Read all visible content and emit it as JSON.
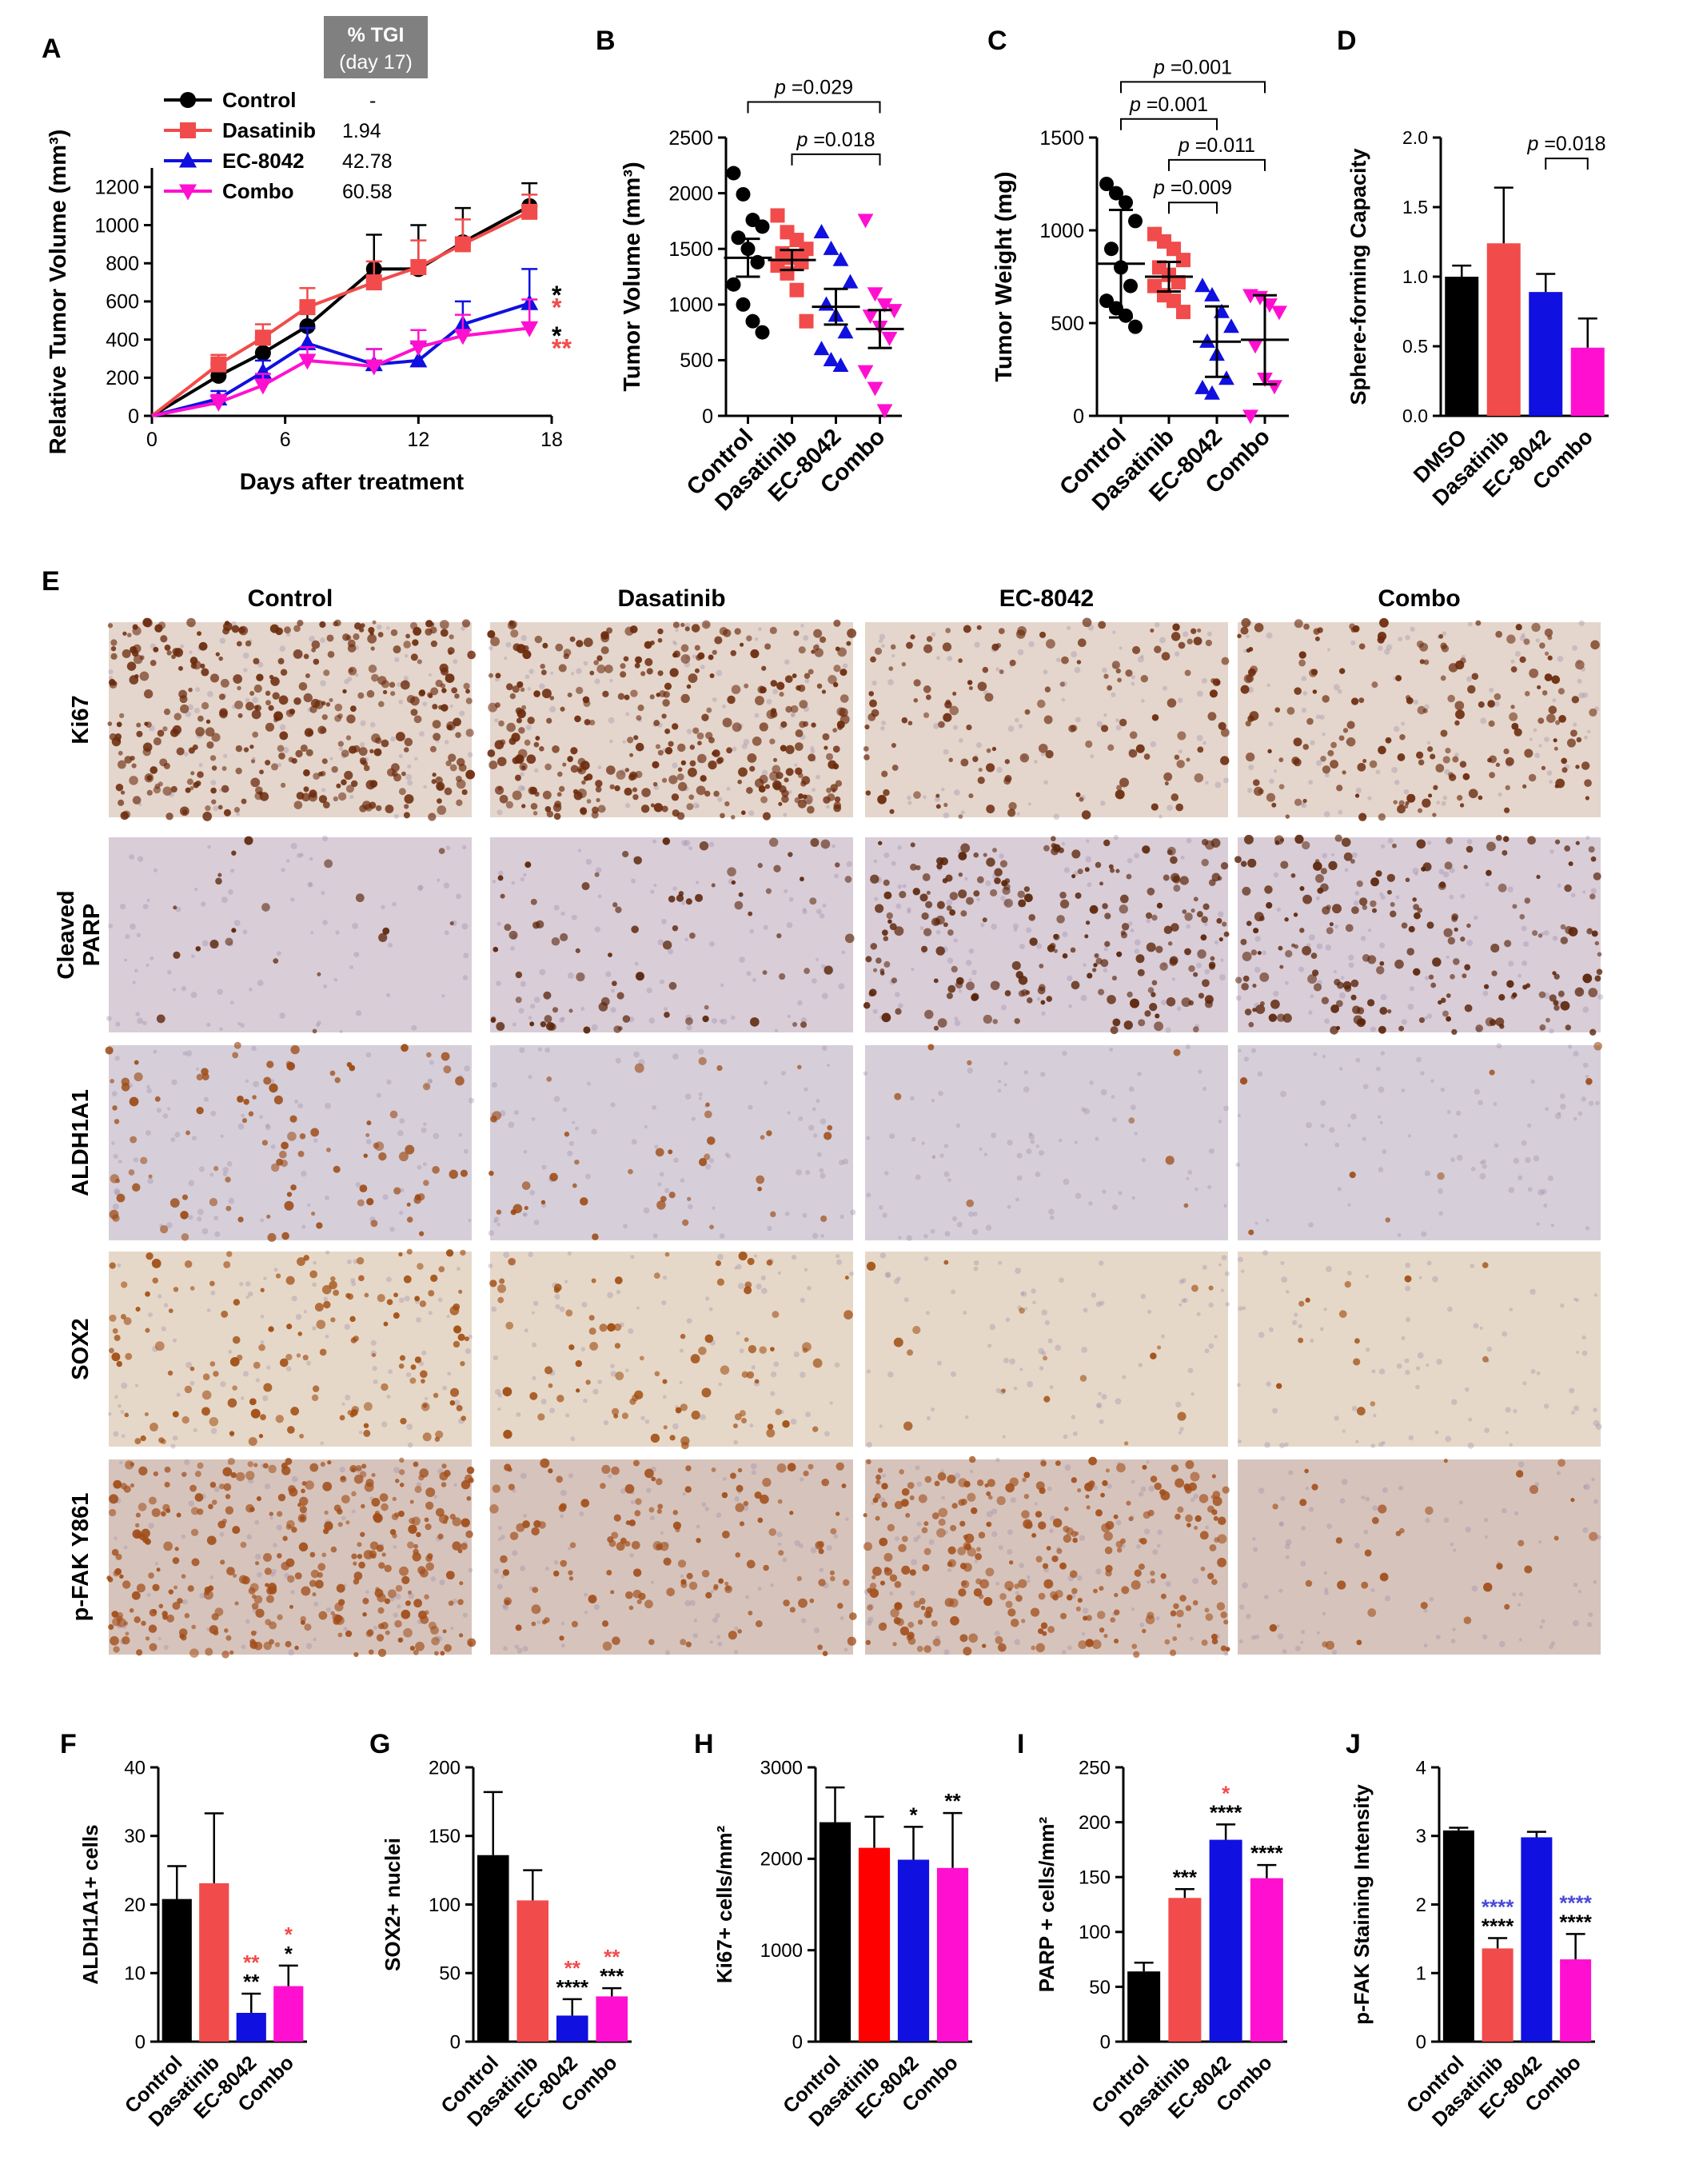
{
  "panel_letters": {
    "A": "A",
    "B": "B",
    "C": "C",
    "D": "D",
    "E": "E",
    "F": "F",
    "G": "G",
    "H": "H",
    "I": "I",
    "J": "J"
  },
  "colors": {
    "control": "#000000",
    "dasatinib": "#f24b4b",
    "ec8042": "#1010e0",
    "combo": "#ff10d0",
    "sig_blue": "#4a4ad8",
    "gray": "#808080"
  },
  "chart_data": [
    {
      "id": "A",
      "type": "line",
      "xlabel": "Days after treatment",
      "ylabel": "Relative Tumor Volume (mm³)",
      "xlim": [
        0,
        18
      ],
      "ylim": [
        0,
        1300
      ],
      "xticks": [
        "0",
        "6",
        "12",
        "18"
      ],
      "yticks": [
        "0",
        "200",
        "400",
        "600",
        "800",
        "1000",
        "1200"
      ],
      "tgi_header": [
        "% TGI",
        "(day 17)"
      ],
      "x": [
        0,
        3,
        5,
        7,
        10,
        12,
        14,
        17
      ],
      "series": [
        {
          "name": "Control",
          "tgi": "-",
          "color": "#000000",
          "marker": "circle",
          "values": [
            0,
            210,
            330,
            470,
            770,
            770,
            910,
            1100
          ],
          "err": [
            0,
            60,
            80,
            100,
            180,
            230,
            180,
            120
          ]
        },
        {
          "name": "Dasatinib",
          "tgi": "1.94",
          "color": "#f24b4b",
          "marker": "square",
          "values": [
            0,
            270,
            410,
            570,
            700,
            780,
            900,
            1070
          ],
          "err": [
            0,
            50,
            70,
            100,
            110,
            140,
            130,
            90
          ]
        },
        {
          "name": "EC-8042",
          "tgi": "42.78",
          "color": "#1010e0",
          "marker": "triangle-up",
          "values": [
            0,
            90,
            230,
            380,
            270,
            290,
            480,
            590
          ],
          "err": [
            0,
            40,
            60,
            80,
            80,
            90,
            120,
            180
          ]
        },
        {
          "name": "Combo",
          "tgi": "60.58",
          "color": "#ff10d0",
          "marker": "triangle-down",
          "values": [
            0,
            70,
            160,
            290,
            260,
            360,
            420,
            460
          ],
          "err": [
            0,
            40,
            60,
            70,
            90,
            90,
            110,
            150
          ]
        }
      ],
      "end_marks": [
        {
          "text": "*",
          "color": "#000000",
          "y": 655
        },
        {
          "text": "*",
          "color": "#f24b4b",
          "y": 590
        },
        {
          "text": "*",
          "color": "#000000",
          "y": 440
        },
        {
          "text": "**",
          "color": "#f24b4b",
          "y": 375
        }
      ]
    },
    {
      "id": "B",
      "type": "scatter",
      "ylabel": "Tumor Volume (mm³)",
      "ylim": [
        0,
        2500
      ],
      "yticks": [
        "0",
        "500",
        "1000",
        "1500",
        "2000",
        "2500"
      ],
      "categories": [
        "Control",
        "Dasatinib",
        "EC-8042",
        "Combo"
      ],
      "groups": [
        {
          "color": "#000000",
          "marker": "circle",
          "mean": 1420,
          "sem": 170,
          "points": [
            2180,
            1990,
            1760,
            1700,
            1600,
            1500,
            1380,
            1180,
            1000,
            850,
            750
          ]
        },
        {
          "color": "#f24b4b",
          "marker": "square",
          "mean": 1400,
          "sem": 90,
          "points": [
            1800,
            1650,
            1580,
            1500,
            1460,
            1420,
            1380,
            1350,
            1280,
            1130,
            850
          ]
        },
        {
          "color": "#1010e0",
          "marker": "triangle-up",
          "mean": 980,
          "sem": 160,
          "points": [
            1650,
            1500,
            1400,
            1200,
            1000,
            900,
            750,
            600,
            500,
            450
          ]
        },
        {
          "color": "#ff10d0",
          "marker": "triangle-down",
          "mean": 780,
          "sem": 170,
          "points": [
            1760,
            1100,
            1000,
            950,
            900,
            800,
            700,
            400,
            250,
            50
          ]
        }
      ],
      "brackets": [
        {
          "from": 0,
          "to": 3,
          "label": "p =0.029",
          "level": 2820
        },
        {
          "from": 1,
          "to": 3,
          "label": "p =0.018",
          "level": 2350
        }
      ]
    },
    {
      "id": "C",
      "type": "scatter",
      "ylabel": "Tumor Weight (mg)",
      "ylim": [
        0,
        1500
      ],
      "yticks": [
        "0",
        "500",
        "1000",
        "1500"
      ],
      "categories": [
        "Control",
        "Dasatinib",
        "EC-8042",
        "Combo"
      ],
      "groups": [
        {
          "color": "#000000",
          "marker": "circle",
          "mean": 820,
          "sem": 290,
          "points": [
            1250,
            1200,
            1150,
            1050,
            900,
            800,
            700,
            620,
            580,
            540,
            480
          ]
        },
        {
          "color": "#f24b4b",
          "marker": "square",
          "mean": 750,
          "sem": 80,
          "points": [
            980,
            940,
            900,
            840,
            800,
            760,
            720,
            700,
            650,
            620,
            560
          ]
        },
        {
          "color": "#1010e0",
          "marker": "triangle-up",
          "mean": 400,
          "sem": 190,
          "points": [
            700,
            650,
            560,
            480,
            400,
            330,
            200,
            150,
            120
          ]
        },
        {
          "color": "#ff10d0",
          "marker": "triangle-down",
          "mean": 410,
          "sem": 240,
          "points": [
            650,
            640,
            600,
            560,
            380,
            200,
            160,
            0
          ]
        }
      ],
      "brackets": [
        {
          "from": 0,
          "to": 3,
          "label": "p =0.001",
          "level": 1800
        },
        {
          "from": 0,
          "to": 2,
          "label": "p =0.001",
          "level": 1600
        },
        {
          "from": 1,
          "to": 3,
          "label": "p =0.011",
          "level": 1380
        },
        {
          "from": 1,
          "to": 2,
          "label": "p =0.009",
          "level": 1150
        }
      ]
    },
    {
      "id": "D",
      "type": "bar",
      "ylabel": "Sphere-forming Capacity",
      "ylim": [
        0,
        2.0
      ],
      "yticks": [
        "0.0",
        "0.5",
        "1.0",
        "1.5",
        "2.0"
      ],
      "categories": [
        "DMSO",
        "Dasatinib",
        "EC-8042",
        "Combo"
      ],
      "values": [
        1.0,
        1.24,
        0.89,
        0.49
      ],
      "err": [
        0.08,
        0.4,
        0.13,
        0.21
      ],
      "colors": [
        "#000000",
        "#f24b4b",
        "#1010e0",
        "#ff10d0"
      ],
      "brackets": [
        {
          "from": 2,
          "to": 3,
          "label": "p =0.018",
          "level": 1.85
        }
      ]
    },
    {
      "id": "F",
      "type": "bar",
      "ylabel": "ALDH1A1+ cells",
      "ylim": [
        0,
        40
      ],
      "yticks": [
        "0",
        "10",
        "20",
        "30",
        "40"
      ],
      "categories": [
        "Control",
        "Dasatinib",
        "EC-8042",
        "Combo"
      ],
      "values": [
        20.8,
        23.1,
        4.2,
        8.1
      ],
      "err": [
        4.8,
        10.2,
        2.8,
        3.0
      ],
      "colors": [
        "#000000",
        "#f24b4b",
        "#1010e0",
        "#ff10d0"
      ],
      "sig": [
        [],
        [],
        [
          {
            "t": "**",
            "c": "#f24b4b"
          },
          {
            "t": "**",
            "c": "#000000"
          }
        ],
        [
          {
            "t": "*",
            "c": "#f24b4b"
          },
          {
            "t": "*",
            "c": "#000000"
          }
        ]
      ]
    },
    {
      "id": "G",
      "type": "bar",
      "ylabel": "SOX2+ nuclei",
      "ylim": [
        0,
        200
      ],
      "yticks": [
        "0",
        "50",
        "100",
        "150",
        "200"
      ],
      "categories": [
        "Control",
        "Dasatinib",
        "EC-8042",
        "Combo"
      ],
      "values": [
        136,
        103,
        19,
        33
      ],
      "err": [
        46,
        22,
        12,
        6
      ],
      "colors": [
        "#000000",
        "#f24b4b",
        "#1010e0",
        "#ff10d0"
      ],
      "sig": [
        [],
        [],
        [
          {
            "t": "**",
            "c": "#f24b4b"
          },
          {
            "t": "****",
            "c": "#000000"
          }
        ],
        [
          {
            "t": "**",
            "c": "#f24b4b"
          },
          {
            "t": "***",
            "c": "#000000"
          }
        ]
      ]
    },
    {
      "id": "H",
      "type": "bar",
      "ylabel": "Ki67+ cells/mm²",
      "ylim": [
        0,
        3000
      ],
      "yticks": [
        "0",
        "1000",
        "2000",
        "3000"
      ],
      "categories": [
        "Control",
        "Dasatinib",
        "EC-8042",
        "Combo"
      ],
      "values": [
        2400,
        2120,
        1990,
        1900
      ],
      "err": [
        380,
        340,
        360,
        600
      ],
      "colors": [
        "#000000",
        "#ff0000",
        "#1010e0",
        "#ff10d0"
      ],
      "sig": [
        [],
        [],
        [
          {
            "t": "*",
            "c": "#000000"
          }
        ],
        [
          {
            "t": "**",
            "c": "#000000"
          }
        ]
      ]
    },
    {
      "id": "I",
      "type": "bar",
      "ylabel": "PARP + cells/mm²",
      "ylim": [
        0,
        250
      ],
      "yticks": [
        "0",
        "50",
        "100",
        "150",
        "200",
        "250"
      ],
      "categories": [
        "Control",
        "Dasatinib",
        "EC-8042",
        "Combo"
      ],
      "values": [
        64,
        131,
        184,
        149
      ],
      "err": [
        8,
        8,
        14,
        12
      ],
      "colors": [
        "#000000",
        "#f24b4b",
        "#1010e0",
        "#ff10d0"
      ],
      "sig": [
        [],
        [
          {
            "t": "***",
            "c": "#000000"
          }
        ],
        [
          {
            "t": "*",
            "c": "#f24b4b"
          },
          {
            "t": "****",
            "c": "#000000"
          }
        ],
        [
          {
            "t": "****",
            "c": "#000000"
          }
        ]
      ]
    },
    {
      "id": "J",
      "type": "bar",
      "ylabel": "p-FAK Staining Intensity",
      "ylim": [
        0,
        4
      ],
      "yticks": [
        "0",
        "1",
        "2",
        "3",
        "4"
      ],
      "categories": [
        "Control",
        "Dasatinib",
        "EC-8042",
        "Combo"
      ],
      "values": [
        3.08,
        1.36,
        2.98,
        1.2
      ],
      "err": [
        0.04,
        0.15,
        0.08,
        0.37
      ],
      "colors": [
        "#000000",
        "#f24b4b",
        "#1010e0",
        "#ff10d0"
      ],
      "sig": [
        [],
        [
          {
            "t": "****",
            "c": "#4a4ad8"
          },
          {
            "t": "****",
            "c": "#000000"
          }
        ],
        [],
        [
          {
            "t": "****",
            "c": "#4a4ad8"
          },
          {
            "t": "****",
            "c": "#000000"
          }
        ]
      ]
    }
  ],
  "micrographs": {
    "columns": [
      "Control",
      "Dasatinib",
      "EC-8042",
      "Combo"
    ],
    "rows": [
      {
        "label": "Ki67",
        "bg": "#e4d6cc",
        "density": [
          0.9,
          0.85,
          0.35,
          0.45
        ],
        "stain": "#6b2a0c"
      },
      {
        "label": "Cleaved PARP",
        "bg": "#d9cdd8",
        "density": [
          0.05,
          0.2,
          0.55,
          0.5
        ],
        "stain": "#5a2408"
      },
      {
        "label": "ALDH1A1",
        "bg": "#d6cfd9",
        "density": [
          0.25,
          0.1,
          0.02,
          0.02
        ],
        "stain": "#9c4a14"
      },
      {
        "label": "SOX2",
        "bg": "#e6d8c8",
        "density": [
          0.35,
          0.2,
          0.04,
          0.03
        ],
        "stain": "#a04c10"
      },
      {
        "label": "p-FAK Y861",
        "bg": "#d6c4bc",
        "density": [
          0.85,
          0.35,
          0.7,
          0.08
        ],
        "stain": "#a24e1a"
      }
    ]
  }
}
